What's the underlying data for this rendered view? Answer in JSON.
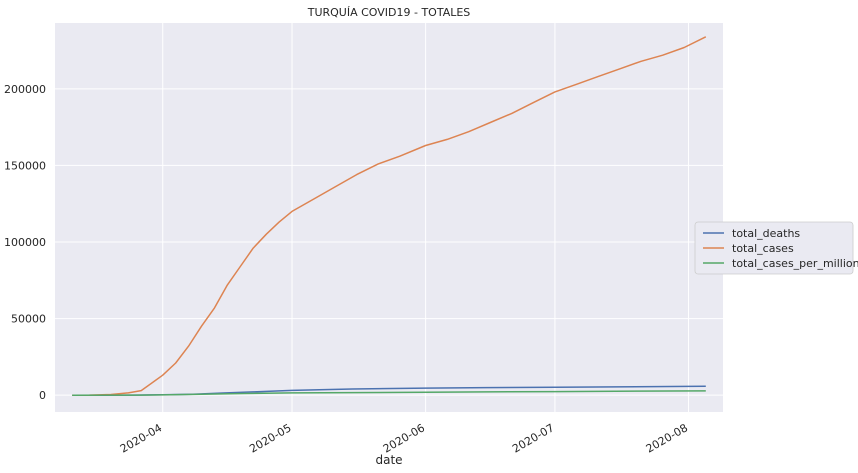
{
  "chart_data": {
    "type": "line",
    "title": "TURQUÍA COVID19 - TOTALES",
    "xlabel": "date",
    "ylabel": "",
    "xlim": [
      "2020-03-07",
      "2020-08-09"
    ],
    "ylim": [
      -11000,
      243000
    ],
    "x_ticks": [
      "2020-04",
      "2020-05",
      "2020-06",
      "2020-07",
      "2020-08"
    ],
    "y_ticks": [
      0,
      50000,
      100000,
      150000,
      200000
    ],
    "grid": true,
    "legend_position": "right",
    "colors": {
      "background": "#eaeaf2",
      "grid": "#ffffff",
      "total_deaths": "#4c72b0",
      "total_cases": "#dd8452",
      "total_cases_per_million": "#55a868"
    },
    "series": [
      {
        "name": "total_deaths",
        "x": [
          "2020-03-11",
          "2020-03-18",
          "2020-03-25",
          "2020-04-01",
          "2020-04-08",
          "2020-04-15",
          "2020-04-22",
          "2020-05-01",
          "2020-05-15",
          "2020-06-01",
          "2020-06-15",
          "2020-07-01",
          "2020-07-15",
          "2020-08-05"
        ],
        "values": [
          0,
          2,
          50,
          200,
          650,
          1400,
          2100,
          3100,
          4000,
          4600,
          4900,
          5100,
          5400,
          5800
        ]
      },
      {
        "name": "total_cases",
        "x": [
          "2020-03-11",
          "2020-03-15",
          "2020-03-20",
          "2020-03-24",
          "2020-03-27",
          "2020-03-30",
          "2020-04-01",
          "2020-04-04",
          "2020-04-07",
          "2020-04-10",
          "2020-04-13",
          "2020-04-16",
          "2020-04-19",
          "2020-04-22",
          "2020-04-25",
          "2020-04-28",
          "2020-05-01",
          "2020-05-06",
          "2020-05-11",
          "2020-05-16",
          "2020-05-21",
          "2020-05-26",
          "2020-06-01",
          "2020-06-06",
          "2020-06-11",
          "2020-06-16",
          "2020-06-21",
          "2020-06-26",
          "2020-07-01",
          "2020-07-06",
          "2020-07-11",
          "2020-07-16",
          "2020-07-21",
          "2020-07-26",
          "2020-07-31",
          "2020-08-05"
        ],
        "values": [
          1,
          50,
          400,
          1500,
          3000,
          9000,
          13000,
          21000,
          32000,
          45000,
          57000,
          72000,
          84000,
          96000,
          105000,
          113000,
          120000,
          128000,
          136000,
          144000,
          151000,
          156000,
          163000,
          167000,
          172000,
          178000,
          184000,
          191000,
          198000,
          203000,
          208000,
          213000,
          218000,
          222000,
          227000,
          234000
        ]
      },
      {
        "name": "total_cases_per_million",
        "x": [
          "2020-03-11",
          "2020-03-20",
          "2020-03-27",
          "2020-04-01",
          "2020-04-10",
          "2020-04-20",
          "2020-05-01",
          "2020-05-15",
          "2020-06-01",
          "2020-06-15",
          "2020-07-01",
          "2020-07-15",
          "2020-08-05"
        ],
        "values": [
          0,
          5,
          35,
          150,
          530,
          1050,
          1450,
          1700,
          1950,
          2150,
          2350,
          2550,
          2780
        ]
      }
    ]
  }
}
